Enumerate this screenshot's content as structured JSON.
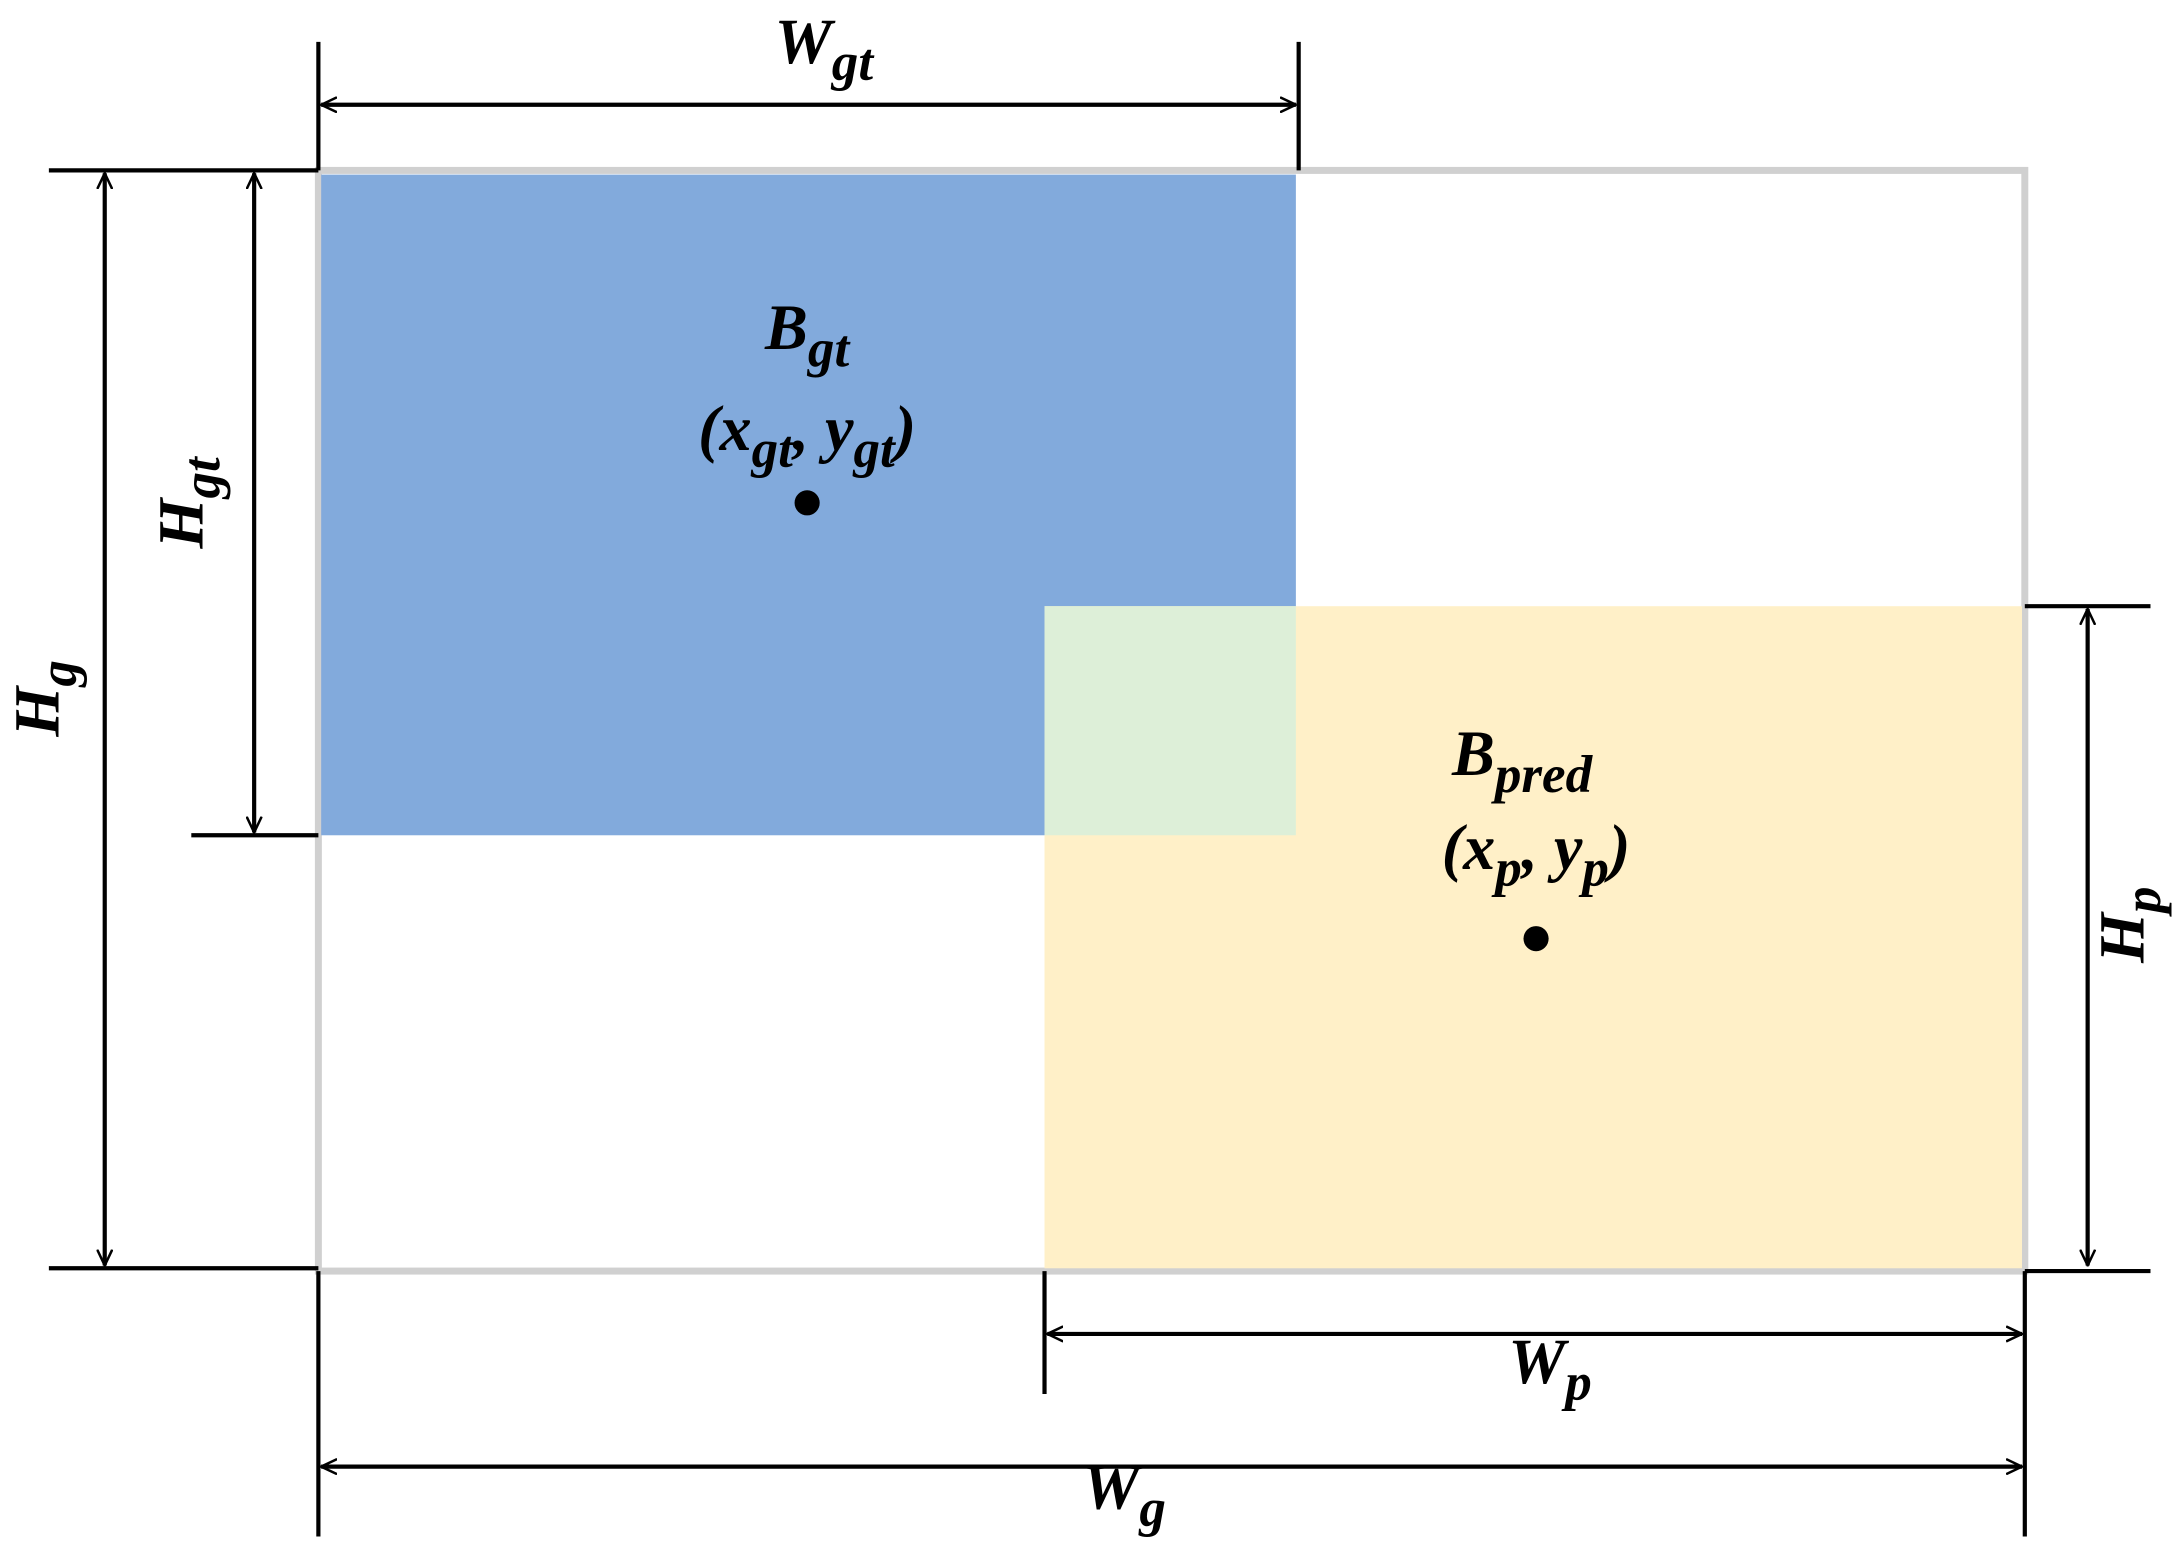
{
  "labels": {
    "w_gt": {
      "base": "W",
      "sub": "gt"
    },
    "h_gt": {
      "base": "H",
      "sub": "gt"
    },
    "h_g": {
      "base": "H",
      "sub": "g"
    },
    "b_gt": {
      "base": "B",
      "sub": "gt"
    },
    "gt_center": {
      "parts": [
        "(x",
        "gt",
        ", y",
        "gt",
        ")"
      ]
    },
    "b_pred": {
      "base": "B",
      "sub": "pred"
    },
    "pred_center": {
      "parts": [
        "(x",
        "p",
        ", y",
        "p",
        ")"
      ]
    },
    "h_p": {
      "base": "H",
      "sub": "p"
    },
    "w_p": {
      "base": "W",
      "sub": "p"
    },
    "w_g": {
      "base": "W",
      "sub": "g"
    }
  }
}
